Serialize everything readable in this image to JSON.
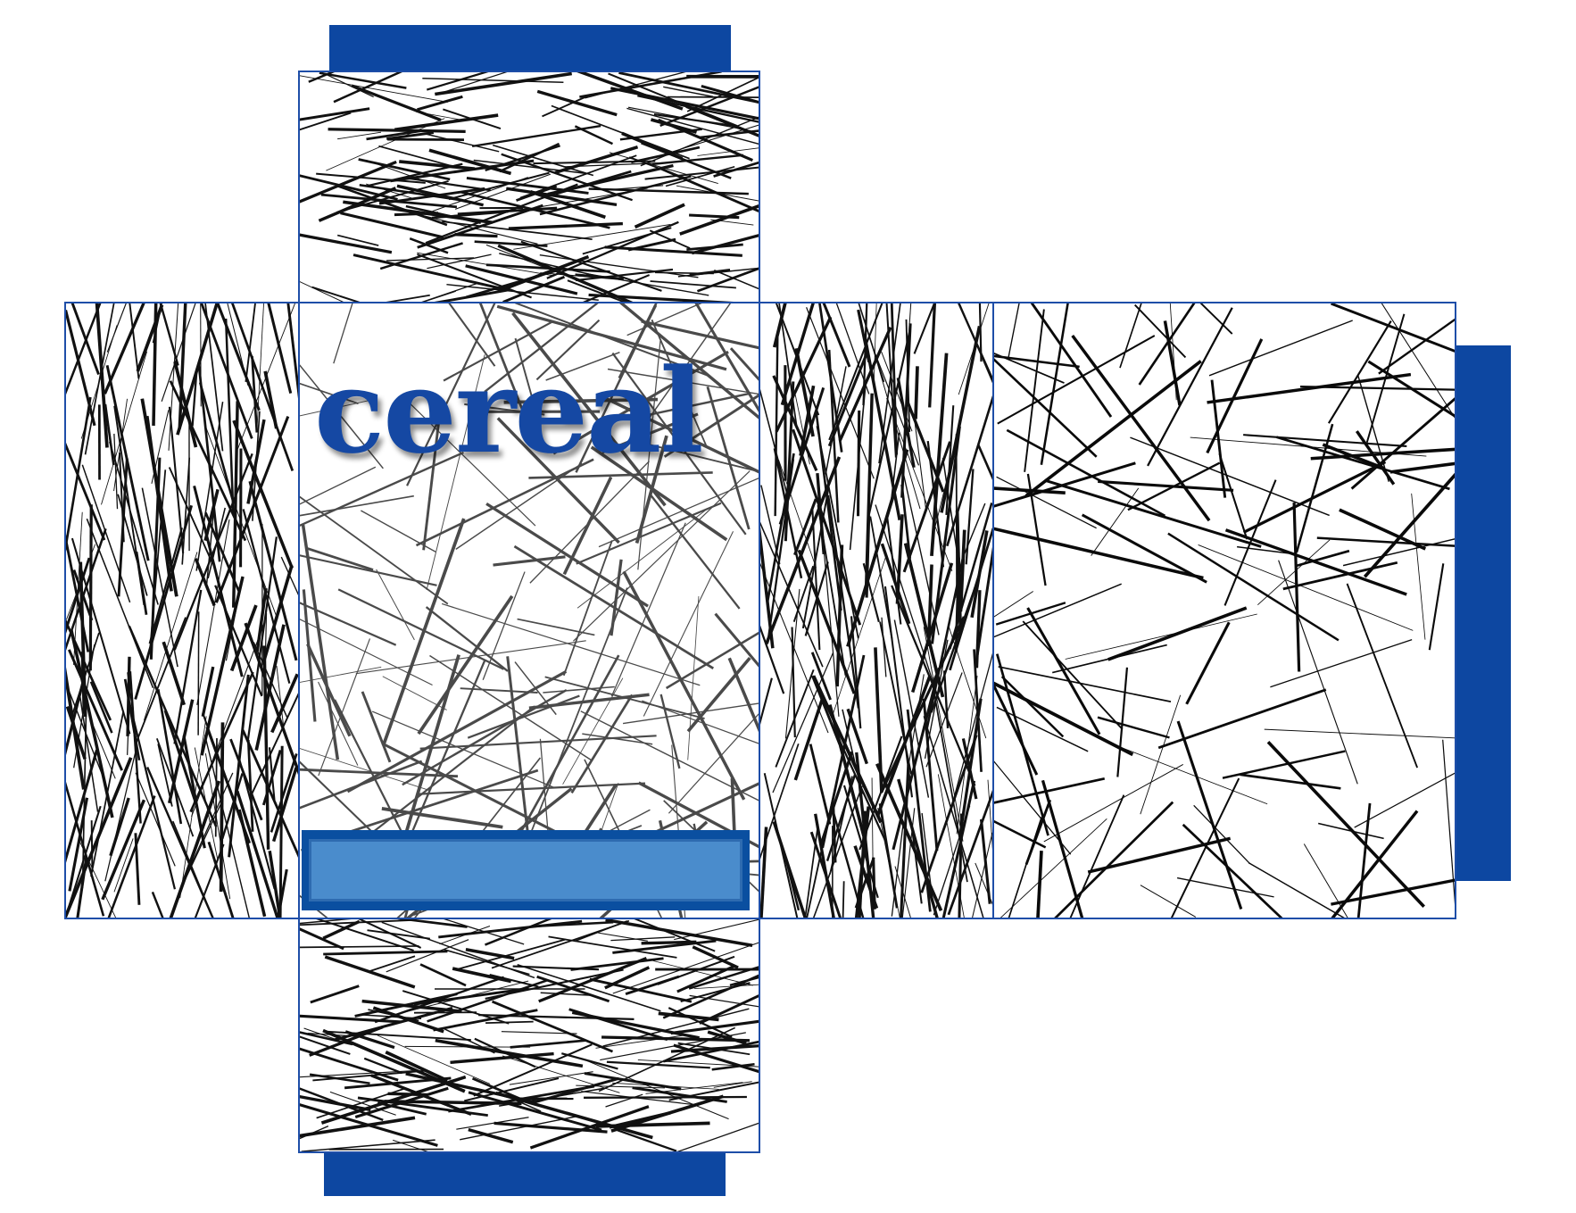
{
  "brand": {
    "name": "cereal",
    "color": "#1548a3"
  },
  "colors": {
    "accent": "#0d47a1",
    "panel_border": "#1e4ea8",
    "label_outer": "#0a4fa0",
    "label_inner": "#4a8ccc"
  },
  "panels": [
    "top-flap",
    "left-side",
    "front",
    "right-side",
    "back",
    "bottom-flap"
  ],
  "tabs": [
    "top-glue-tab",
    "right-glue-tab",
    "bottom-glue-tab"
  ]
}
